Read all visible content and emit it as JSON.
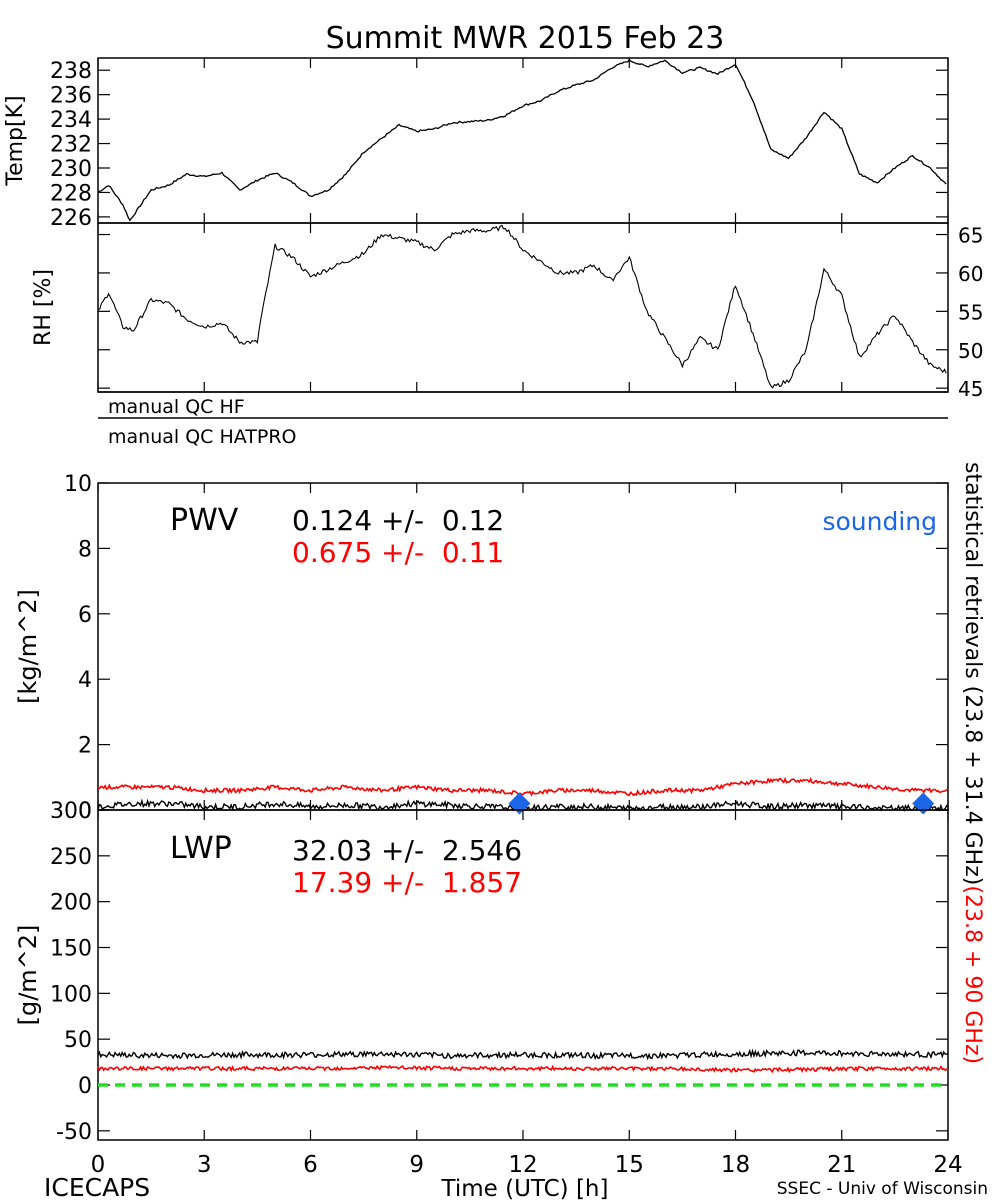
{
  "title": "Summit MWR 2015 Feb 23",
  "footer": {
    "left": "ICECAPS",
    "center": "Time (UTC) [h]",
    "right": "SSEC - Univ of Wisconsin"
  },
  "colors": {
    "hf": "#000000",
    "hatpro": "#ff0000",
    "sounding": "#1a66e6",
    "zero_line": "#22dd22"
  },
  "qc": {
    "hf_label": "manual QC HF",
    "hatpro_label": "manual QC HATPRO"
  },
  "side_labels": {
    "black_part": "statistical retrievals (23.8 + 31.4 GHz)",
    "red_part": "(23.8 + 90 GHz)"
  },
  "pwv_box": {
    "name": "PWV",
    "line1": "0.124 +/-  0.12",
    "line2": "0.675 +/-  0.11",
    "legend": "sounding"
  },
  "lwp_box": {
    "name": "LWP",
    "line1": "32.03 +/-  2.546",
    "line2": "17.39 +/-  1.857"
  },
  "chart_data": [
    {
      "type": "line",
      "title": "",
      "ylabel": "Temp[K]",
      "xlim": [
        0,
        24
      ],
      "ylim": [
        225.5,
        239
      ],
      "yticks": [
        226,
        228,
        230,
        232,
        234,
        236,
        238
      ],
      "series": [
        {
          "x": [
            0,
            0.3,
            0.7,
            0.9,
            1.5,
            2,
            2.5,
            3,
            3.5,
            4,
            4.5,
            5,
            5.5,
            6,
            6.5,
            7,
            7.5,
            8,
            8.5,
            9,
            9.5,
            10,
            10.5,
            11,
            11.5,
            12,
            12.5,
            13,
            13.5,
            14,
            14.5,
            15,
            15.5,
            16,
            16.5,
            17,
            17.5,
            18,
            18.5,
            19,
            19.5,
            20,
            20.5,
            21,
            21.5,
            22,
            22.5,
            23,
            23.5,
            24
          ],
          "y": [
            228,
            228.6,
            227,
            225.7,
            228.2,
            228.6,
            229.5,
            229.3,
            229.6,
            228.2,
            229,
            229.6,
            228.8,
            227.7,
            228.2,
            229.5,
            231.3,
            232.4,
            233.5,
            233,
            233.2,
            233.7,
            233.8,
            233.9,
            234.3,
            235.1,
            235.5,
            236.3,
            236.8,
            237.2,
            238.2,
            238.8,
            238.3,
            238.8,
            237.8,
            238.2,
            237.7,
            238.5,
            235.5,
            231.5,
            230.8,
            232.5,
            234.6,
            233.2,
            229.5,
            228.8,
            230,
            231,
            230,
            228.5
          ]
        }
      ]
    },
    {
      "type": "line",
      "ylabel": "RH [%]",
      "xlim": [
        0,
        24
      ],
      "ylim": [
        44.5,
        66.5
      ],
      "yticks": [
        45,
        50,
        55,
        60,
        65
      ],
      "series": [
        {
          "x": [
            0,
            0.3,
            0.7,
            1,
            1.5,
            2,
            2.5,
            3,
            3.5,
            4,
            4.5,
            4.6,
            5,
            5.5,
            6,
            6.5,
            7,
            7.5,
            8,
            8.5,
            9,
            9.5,
            10,
            10.5,
            11,
            11.5,
            12,
            12.5,
            13,
            13.5,
            14,
            14.5,
            15,
            15.5,
            16,
            16.5,
            17,
            17.5,
            18,
            18.5,
            19,
            19.5,
            20,
            20.5,
            21,
            21.5,
            22,
            22.5,
            23,
            23.5,
            24
          ],
          "y": [
            55,
            57.5,
            53,
            52.5,
            56.5,
            56,
            54,
            53,
            53.5,
            51,
            51,
            54,
            63.5,
            62,
            59.5,
            60.5,
            61.5,
            62.5,
            65,
            64.5,
            64,
            63,
            65,
            65.5,
            65.5,
            66,
            63,
            61.5,
            60,
            60,
            61,
            59,
            62,
            55,
            51.5,
            48,
            51.5,
            50,
            58.5,
            52,
            45,
            46,
            50,
            60.5,
            57,
            49,
            52,
            54.5,
            51,
            48,
            47
          ]
        }
      ]
    },
    {
      "type": "line",
      "ylabel": "[kg/m^2]",
      "xlim": [
        0,
        24
      ],
      "ylim": [
        0,
        10
      ],
      "yticks": [
        0,
        2,
        4,
        6,
        8,
        10
      ],
      "series": [
        {
          "x": [
            0,
            1,
            2,
            3,
            4,
            5,
            6,
            7,
            8,
            9,
            10,
            11,
            12,
            13,
            14,
            15,
            16,
            17,
            18,
            19,
            20,
            21,
            22,
            23,
            24
          ],
          "y": [
            0.7,
            0.7,
            0.7,
            0.6,
            0.6,
            0.7,
            0.6,
            0.7,
            0.6,
            0.7,
            0.6,
            0.6,
            0.5,
            0.6,
            0.6,
            0.5,
            0.6,
            0.6,
            0.8,
            0.9,
            0.9,
            0.8,
            0.7,
            0.6,
            0.6
          ]
        },
        {
          "x": [
            0,
            1,
            2,
            3,
            4,
            5,
            6,
            7,
            8,
            9,
            10,
            11,
            12,
            13,
            14,
            15,
            16,
            17,
            18,
            19,
            20,
            21,
            22,
            23,
            24
          ],
          "y": [
            0.1,
            0.2,
            0.2,
            0.1,
            0.1,
            0.2,
            0.1,
            0.15,
            0.1,
            0.2,
            0.15,
            0.1,
            0.05,
            0.1,
            0.1,
            0.05,
            0.1,
            0.1,
            0.2,
            0.1,
            0.15,
            0.1,
            0.05,
            0.05,
            0.05
          ]
        },
        {
          "type": "scatter",
          "x": [
            11.9,
            23.3
          ],
          "y": [
            0.2,
            0.2
          ]
        }
      ]
    },
    {
      "type": "line",
      "ylabel": "[g/m^2]",
      "xlabel": "Time (UTC) [h]",
      "xlim": [
        0,
        24
      ],
      "ylim": [
        -60,
        300
      ],
      "yticks": [
        -50,
        0,
        50,
        100,
        150,
        200,
        250,
        300
      ],
      "xticks": [
        0,
        3,
        6,
        9,
        12,
        15,
        18,
        21,
        24
      ],
      "series": [
        {
          "x": [
            0,
            2,
            4,
            6,
            8,
            10,
            12,
            14,
            16,
            18,
            20,
            22,
            24
          ],
          "y": [
            33,
            32,
            33,
            33,
            34,
            32,
            33,
            32,
            32,
            34,
            35,
            34,
            33
          ]
        },
        {
          "x": [
            0,
            2,
            4,
            6,
            8,
            10,
            12,
            14,
            16,
            18,
            20,
            22,
            24
          ],
          "y": [
            18,
            18,
            18,
            18,
            19,
            18,
            18,
            18,
            18,
            16,
            17,
            18,
            18
          ]
        },
        {
          "x": [
            0,
            24
          ],
          "y": [
            0,
            0
          ]
        }
      ]
    }
  ]
}
